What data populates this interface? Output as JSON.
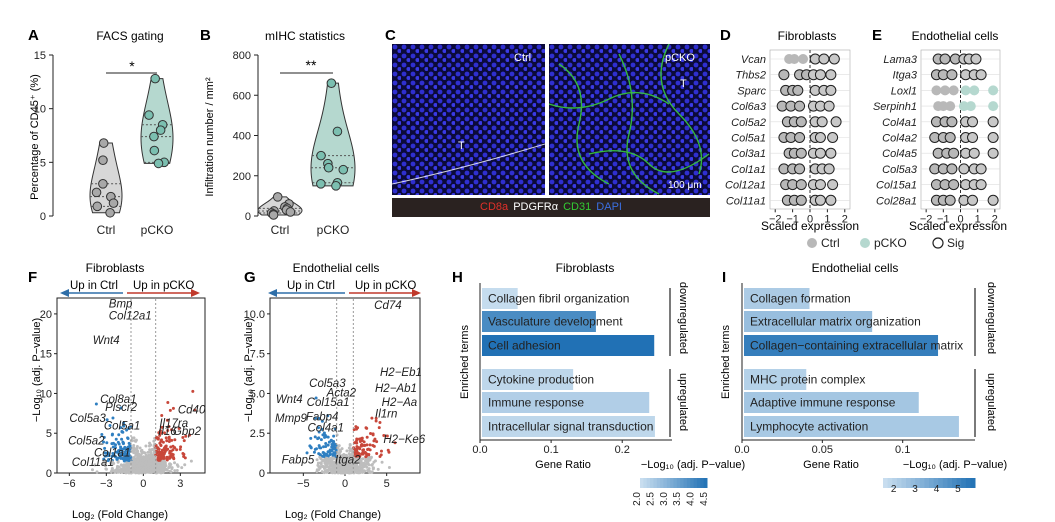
{
  "panels": {
    "A": {
      "letter": "A",
      "title": "FACS gating",
      "ylabel": "Percentage of CD45⁺ (%)",
      "significance": "*",
      "chart_data": {
        "type": "violin",
        "categories": [
          "Ctrl",
          "pCKO"
        ],
        "ylim": [
          0,
          15
        ],
        "yticks": [
          0,
          5,
          10,
          15
        ],
        "points": {
          "Ctrl": [
            6.8,
            5.2,
            3.0,
            2.2,
            1.8,
            1.2,
            0.9,
            0.3
          ],
          "pCKO": [
            12.8,
            9.4,
            8.5,
            8.0,
            7.4,
            6.1,
            5.0,
            4.9
          ]
        }
      }
    },
    "B": {
      "letter": "B",
      "title": "mIHC statistics",
      "ylabel": "Infiltration number / mm²",
      "significance": "**",
      "chart_data": {
        "type": "violin",
        "categories": [
          "Ctrl",
          "pCKO"
        ],
        "ylim": [
          0,
          800
        ],
        "yticks": [
          0,
          200,
          400,
          600,
          800
        ],
        "points": {
          "Ctrl": [
            95,
            60,
            45,
            38,
            30,
            25,
            20,
            15,
            10,
            5
          ],
          "pCKO": [
            660,
            420,
            300,
            260,
            240,
            230,
            165,
            160,
            150
          ]
        }
      }
    },
    "C": {
      "letter": "C",
      "ctrl_label": "Ctrl",
      "pcko_label": "pCKO",
      "tumor_label": "T",
      "scale_bar": "100 μm",
      "stains": [
        {
          "text": "CD8a",
          "color": "#e0302a"
        },
        {
          "text": "PDGFRα",
          "color": "#ffffff"
        },
        {
          "text": "CD31",
          "color": "#33cc33"
        },
        {
          "text": "DAPI",
          "color": "#3b6fe0"
        }
      ]
    },
    "D": {
      "letter": "D",
      "title": "Fibroblasts",
      "xlabel": "Scaled expression",
      "xticks": [
        -2,
        -1,
        0,
        1,
        2
      ],
      "chart_data": {
        "type": "dot",
        "genes": [
          "Vcan",
          "Thbs2",
          "Sparc",
          "Col6a3",
          "Col5a2",
          "Col5a1",
          "Col3a1",
          "Col1a1",
          "Col12a1",
          "Col11a1"
        ],
        "ctrl": [
          [
            -1.2,
            -0.9,
            -0.4
          ],
          [
            -1.5,
            -0.6,
            -0.2
          ],
          [
            -1.4,
            -1.0,
            -0.7
          ],
          [
            -1.6,
            -1.1,
            -0.6
          ],
          [
            -1.3,
            -0.9,
            -0.5
          ],
          [
            -1.5,
            -1.1,
            -0.6
          ],
          [
            -1.2,
            -0.9,
            -0.5
          ],
          [
            -1.5,
            -1.0,
            -0.6
          ],
          [
            -1.4,
            -1.0,
            -0.5
          ],
          [
            -1.3,
            -0.9,
            -0.5
          ]
        ],
        "pcko": [
          [
            0.3,
            0.8,
            1.4
          ],
          [
            0.2,
            0.6,
            1.2
          ],
          [
            0.3,
            0.8,
            1.2
          ],
          [
            0.2,
            0.6,
            1.1
          ],
          [
            0.3,
            0.7,
            1.5
          ],
          [
            0.3,
            0.6,
            1.3
          ],
          [
            0.2,
            0.6,
            1.2
          ],
          [
            0.3,
            0.7,
            1.1
          ],
          [
            0.2,
            0.6,
            1.3
          ],
          [
            0.3,
            0.6,
            1.2
          ]
        ],
        "sig_ctrl": [
          false,
          true,
          true,
          true,
          true,
          true,
          true,
          true,
          true,
          true
        ],
        "sig_pcko": [
          true,
          true,
          true,
          true,
          true,
          true,
          true,
          true,
          true,
          true
        ]
      }
    },
    "E": {
      "letter": "E",
      "title": "Endothelial cells",
      "xlabel": "Scaled expression",
      "xticks": [
        -2,
        -1,
        0,
        1,
        2
      ],
      "chart_data": {
        "type": "dot",
        "genes": [
          "Lama3",
          "Itga3",
          "Loxl1",
          "Serpinh1",
          "Col4a1",
          "Col4a2",
          "Col4a5",
          "Col5a3",
          "Col15a1",
          "Col28a1"
        ],
        "ctrl": [
          [
            -1.3,
            -0.9,
            -0.3
          ],
          [
            -1.4,
            -1.0,
            -0.5
          ],
          [
            -1.4,
            -0.9,
            -0.4
          ],
          [
            -1.3,
            -1.0,
            -0.6
          ],
          [
            -1.4,
            -0.9,
            -0.5
          ],
          [
            -1.5,
            -1.0,
            -0.6
          ],
          [
            -1.3,
            -0.8,
            -0.4
          ],
          [
            -1.5,
            -1.0,
            -0.5
          ],
          [
            -1.4,
            -0.9,
            -0.4
          ],
          [
            -1.4,
            -1.0,
            -0.6
          ]
        ],
        "pcko": [
          [
            0.2,
            0.5,
            0.9
          ],
          [
            0.3,
            0.8,
            1.2
          ],
          [
            0.3,
            0.8,
            1.9
          ],
          [
            0.2,
            0.6,
            1.9
          ],
          [
            0.3,
            0.7,
            1.9
          ],
          [
            0.3,
            0.7,
            1.9
          ],
          [
            0.3,
            0.8,
            1.9
          ],
          [
            0.2,
            0.8,
            1.2
          ],
          [
            0.3,
            0.8,
            1.2
          ],
          [
            0.2,
            0.7,
            1.9
          ]
        ],
        "sig_ctrl": [
          true,
          true,
          false,
          false,
          true,
          true,
          true,
          true,
          true,
          true
        ],
        "sig_pcko": [
          true,
          true,
          false,
          false,
          true,
          true,
          true,
          true,
          true,
          true
        ]
      }
    },
    "legend": {
      "items": [
        {
          "label": "Ctrl",
          "color": "#b8b8b8",
          "sig": false
        },
        {
          "label": "pCKO",
          "color": "#b5d8cf",
          "sig": false
        },
        {
          "label": "Sig",
          "color": "#ffffff",
          "sig": true
        }
      ]
    },
    "F": {
      "letter": "F",
      "title": "Fibroblasts",
      "up_ctrl": "Up in Ctrl",
      "up_pcko": "Up in pCKO",
      "xlabel": "Log₂ (Fold Change)",
      "ylabel": "−Log₁₀ (adj. P−value)",
      "chart_data": {
        "type": "scatter",
        "xlim": [
          -7,
          5
        ],
        "ylim": [
          0,
          22
        ],
        "xticks": [
          -6,
          -3,
          0,
          3
        ],
        "yticks": [
          0,
          5,
          10,
          15,
          20
        ],
        "labels": [
          {
            "text": "Bmp",
            "x": -2.8,
            "y": 20.8
          },
          {
            "text": "Col12a1",
            "x": -2.8,
            "y": 19.3
          },
          {
            "text": "Wnt4",
            "x": -4.1,
            "y": 16.2
          },
          {
            "text": "Col8a1",
            "x": -3.5,
            "y": 8.8
          },
          {
            "text": "Plscr2",
            "x": -3.1,
            "y": 7.8
          },
          {
            "text": "Cd40",
            "x": 2.8,
            "y": 7.5
          },
          {
            "text": "Col5a3",
            "x": -6.0,
            "y": 6.4
          },
          {
            "text": "Col5a1",
            "x": -3.2,
            "y": 5.5
          },
          {
            "text": "Il17ra",
            "x": 1.3,
            "y": 5.8
          },
          {
            "text": "Il16",
            "x": 1.2,
            "y": 4.8
          },
          {
            "text": "Gbp2",
            "x": 2.4,
            "y": 4.8
          },
          {
            "text": "Col5a2",
            "x": -6.1,
            "y": 3.6
          },
          {
            "text": "Col1a1",
            "x": -4.0,
            "y": 2.1
          },
          {
            "text": "Col11a1",
            "x": -5.8,
            "y": 0.9
          }
        ]
      }
    },
    "G": {
      "letter": "G",
      "title": "Endothelial cells",
      "up_ctrl": "Up in Ctrl",
      "up_pcko": "Up in pCKO",
      "xlabel": "Log₂ (Fold Change)",
      "ylabel": "−Log₁₀ (adj. P−value)",
      "chart_data": {
        "type": "scatter",
        "xlim": [
          -9,
          9
        ],
        "ylim": [
          0,
          11
        ],
        "xticks": [
          -5,
          0,
          5
        ],
        "yticks": [
          0,
          2.5,
          5.0,
          7.5,
          10.0
        ],
        "labels": [
          {
            "text": "Cd74",
            "x": 3.5,
            "y": 10.3
          },
          {
            "text": "H2−Eb1",
            "x": 4.2,
            "y": 6.1
          },
          {
            "text": "H2−Ab1",
            "x": 3.6,
            "y": 5.1
          },
          {
            "text": "Col5a3",
            "x": -4.3,
            "y": 5.4
          },
          {
            "text": "Acta2",
            "x": -2.2,
            "y": 4.8
          },
          {
            "text": "H2−Aa",
            "x": 4.4,
            "y": 4.2
          },
          {
            "text": "Wnt4",
            "x": -8.3,
            "y": 4.4
          },
          {
            "text": "Col15a1",
            "x": -4.6,
            "y": 4.2
          },
          {
            "text": "Il1rn",
            "x": 3.6,
            "y": 3.5
          },
          {
            "text": "Fabp4",
            "x": -4.7,
            "y": 3.3
          },
          {
            "text": "Mmp9",
            "x": -8.4,
            "y": 3.2
          },
          {
            "text": "Col4a1",
            "x": -4.5,
            "y": 2.6
          },
          {
            "text": "H2−Ke6",
            "x": 4.6,
            "y": 1.9
          },
          {
            "text": "Itga2",
            "x": -1.2,
            "y": 0.6
          },
          {
            "text": "Fabp5",
            "x": -7.6,
            "y": 0.6
          }
        ]
      }
    },
    "H": {
      "letter": "H",
      "title": "Fibroblasts",
      "ylabel": "Enriched terms",
      "xlabel": "Gene Ratio",
      "group_down": "downregulated",
      "group_up": "upregulated",
      "colorbar_title": "−Log₁₀ (adj. P−value)",
      "chart_data": {
        "type": "bar",
        "orientation": "horizontal",
        "xlim": [
          0,
          0.27
        ],
        "xticks": [
          0.0,
          0.1,
          0.2
        ],
        "bars": [
          {
            "term": "Collagen fibril organization",
            "value": 0.053,
            "score": 2.1,
            "group": "downregulated"
          },
          {
            "term": "Vasculature development",
            "value": 0.163,
            "score": 3.9,
            "group": "downregulated"
          },
          {
            "term": "Cell adhesion",
            "value": 0.245,
            "score": 4.5,
            "group": "downregulated"
          },
          {
            "term": "Cytokine production",
            "value": 0.131,
            "score": 2.2,
            "group": "upregulated"
          },
          {
            "term": "Immune response",
            "value": 0.238,
            "score": 2.4,
            "group": "upregulated"
          },
          {
            "term": "Intracellular signal transduction",
            "value": 0.246,
            "score": 2.2,
            "group": "upregulated"
          }
        ],
        "colorbar": {
          "min": 2.0,
          "max": 4.5,
          "ticks": [
            "2.0",
            "2.5",
            "3.0",
            "3.5",
            "4.0",
            "4.5"
          ]
        }
      }
    },
    "I": {
      "letter": "I",
      "title": "Endothelial cells",
      "ylabel": "Enriched terms",
      "xlabel": "Gene Ratio",
      "group_down": "downregulated",
      "group_up": "upregulated",
      "colorbar_title": "−Log₁₀ (adj. P−value)",
      "chart_data": {
        "type": "bar",
        "orientation": "horizontal",
        "xlim": [
          0,
          0.145
        ],
        "xticks": [
          0.0,
          0.05,
          0.1
        ],
        "bars": [
          {
            "term": "Collagen formation",
            "value": 0.042,
            "score": 2.3,
            "group": "downregulated"
          },
          {
            "term": "Extracellular matrix organization",
            "value": 0.081,
            "score": 2.8,
            "group": "downregulated"
          },
          {
            "term": "Collagen−containing extracellular matrix",
            "value": 0.122,
            "score": 5.3,
            "group": "downregulated"
          },
          {
            "term": "MHC protein complex",
            "value": 0.04,
            "score": 2.1,
            "group": "upregulated"
          },
          {
            "term": "Adaptive immune response",
            "value": 0.11,
            "score": 2.5,
            "group": "upregulated"
          },
          {
            "term": "Lymphocyte activation",
            "value": 0.135,
            "score": 2.4,
            "group": "upregulated"
          }
        ],
        "colorbar": {
          "min": 1.5,
          "max": 5.8,
          "ticks": [
            "2",
            "3",
            "4",
            "5"
          ]
        }
      }
    }
  }
}
